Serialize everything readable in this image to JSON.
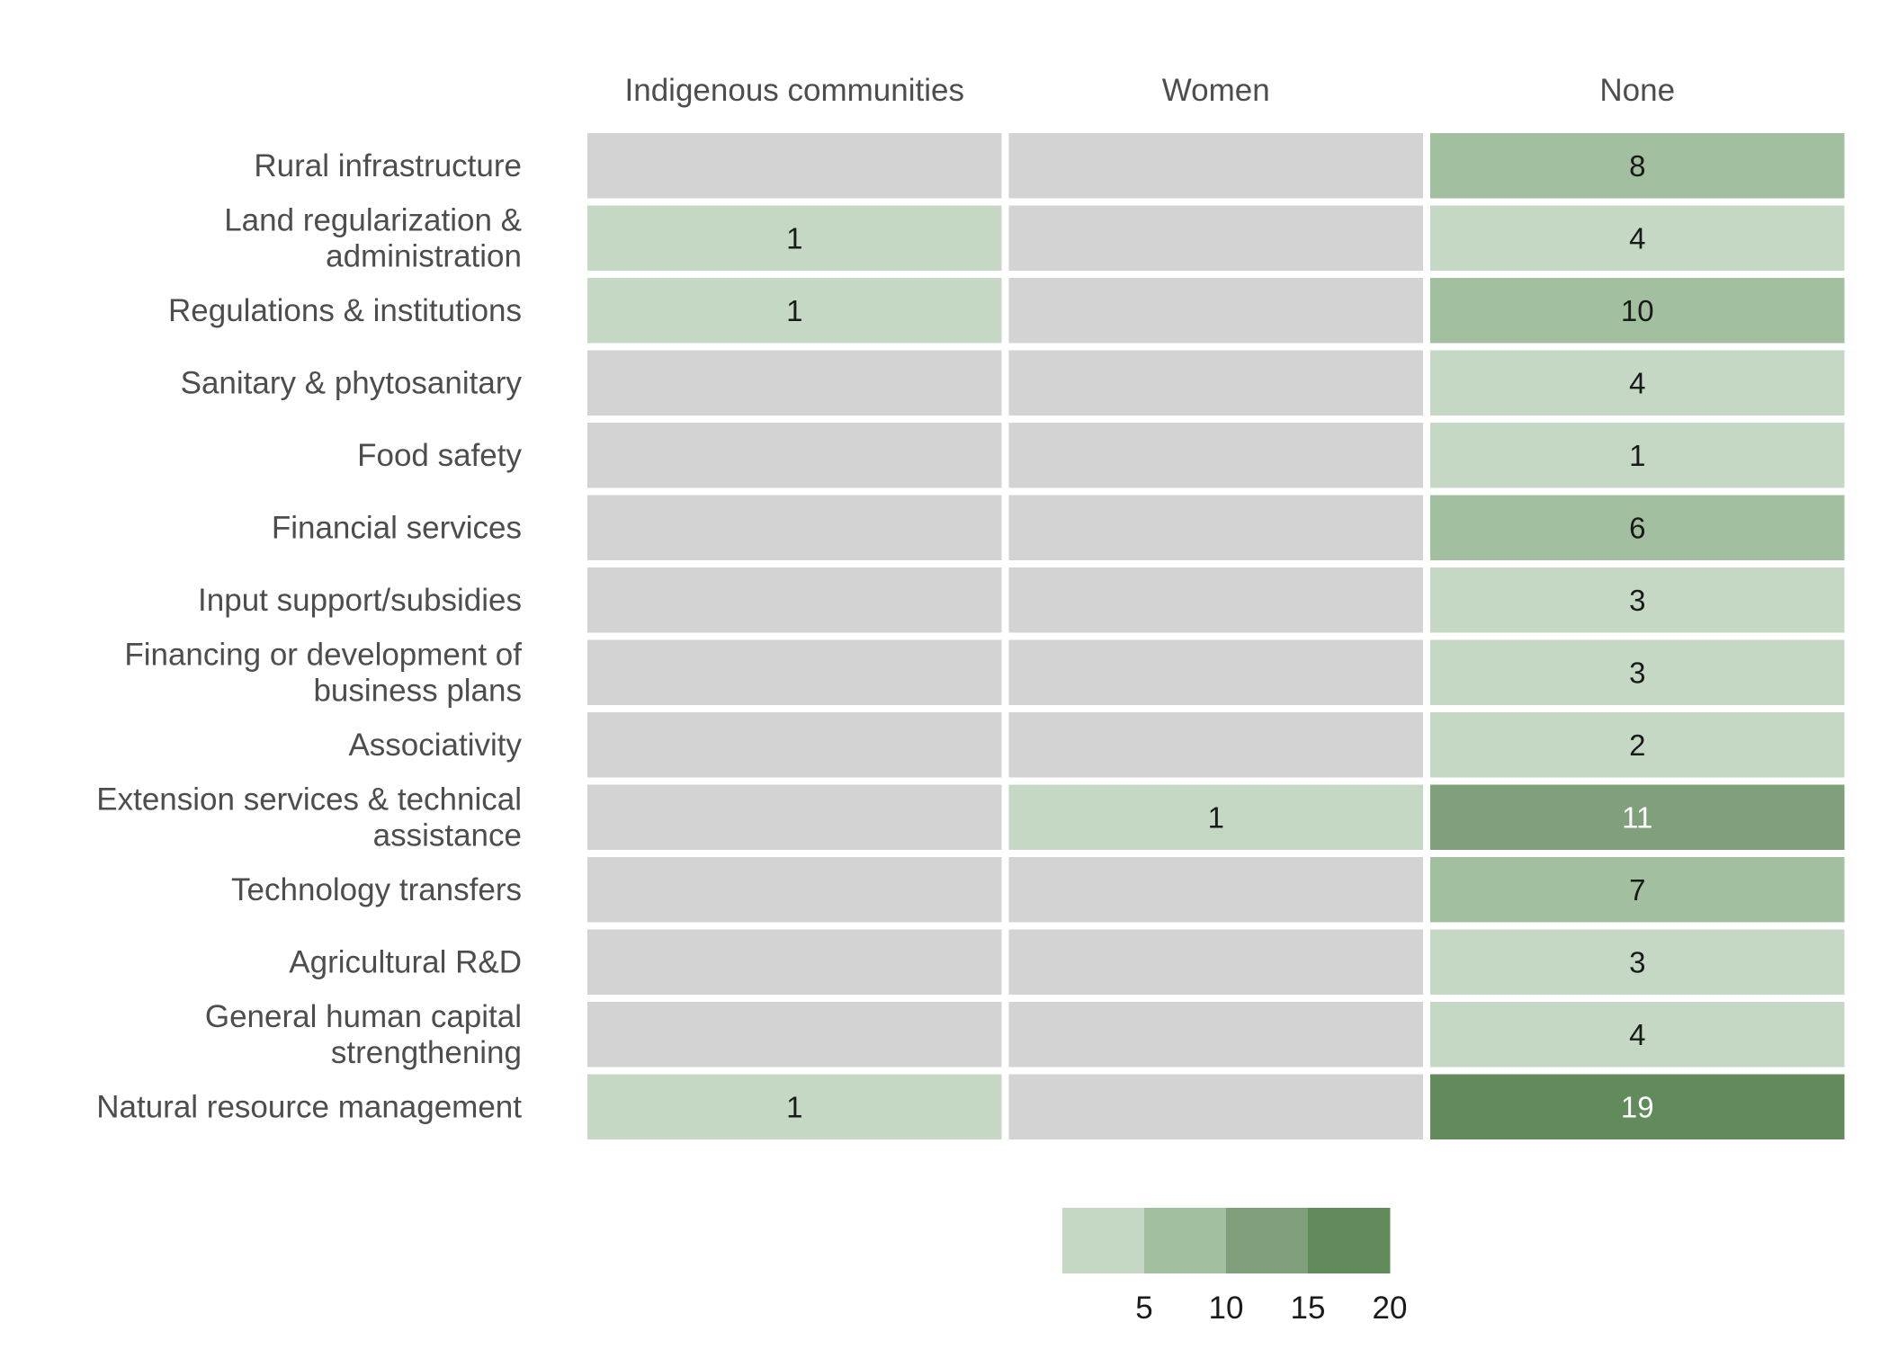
{
  "chart_data": {
    "type": "heatmap",
    "columns": [
      "Indigenous communities",
      "Women",
      "None"
    ],
    "rows": [
      [
        "Rural infrastructure"
      ],
      [
        "Land regularization &",
        "administration"
      ],
      [
        "Regulations & institutions"
      ],
      [
        "Sanitary & phytosanitary"
      ],
      [
        "Food safety"
      ],
      [
        "Financial services"
      ],
      [
        "Input support/subsidies"
      ],
      [
        "Financing or development of",
        "business plans"
      ],
      [
        "Associativity"
      ],
      [
        "Extension services & technical",
        "assistance"
      ],
      [
        "Technology transfers"
      ],
      [
        "Agricultural R&D"
      ],
      [
        "General human capital",
        "strengthening"
      ],
      [
        "Natural resource management"
      ]
    ],
    "values": [
      [
        null,
        null,
        8
      ],
      [
        1,
        null,
        4
      ],
      [
        1,
        null,
        10
      ],
      [
        null,
        null,
        4
      ],
      [
        null,
        null,
        1
      ],
      [
        null,
        null,
        6
      ],
      [
        null,
        null,
        3
      ],
      [
        null,
        null,
        3
      ],
      [
        null,
        null,
        2
      ],
      [
        null,
        1,
        11
      ],
      [
        null,
        null,
        7
      ],
      [
        null,
        null,
        3
      ],
      [
        null,
        null,
        4
      ],
      [
        1,
        null,
        19
      ]
    ],
    "missing_color": "#d3d3d3",
    "legend": {
      "placement": "bottom",
      "bins": [
        {
          "min": 0,
          "max": 5,
          "color": "#c4d8c4"
        },
        {
          "min": 5,
          "max": 10,
          "color": "#a2bf9f"
        },
        {
          "min": 10,
          "max": 15,
          "color": "#809f7b"
        },
        {
          "min": 15,
          "max": 20,
          "color": "#628b5c"
        }
      ],
      "ticks": [
        5,
        10,
        15,
        20
      ]
    },
    "text_colors": {
      "dark": "#1a1a1a",
      "light": "#ffffff"
    },
    "grid": false
  }
}
